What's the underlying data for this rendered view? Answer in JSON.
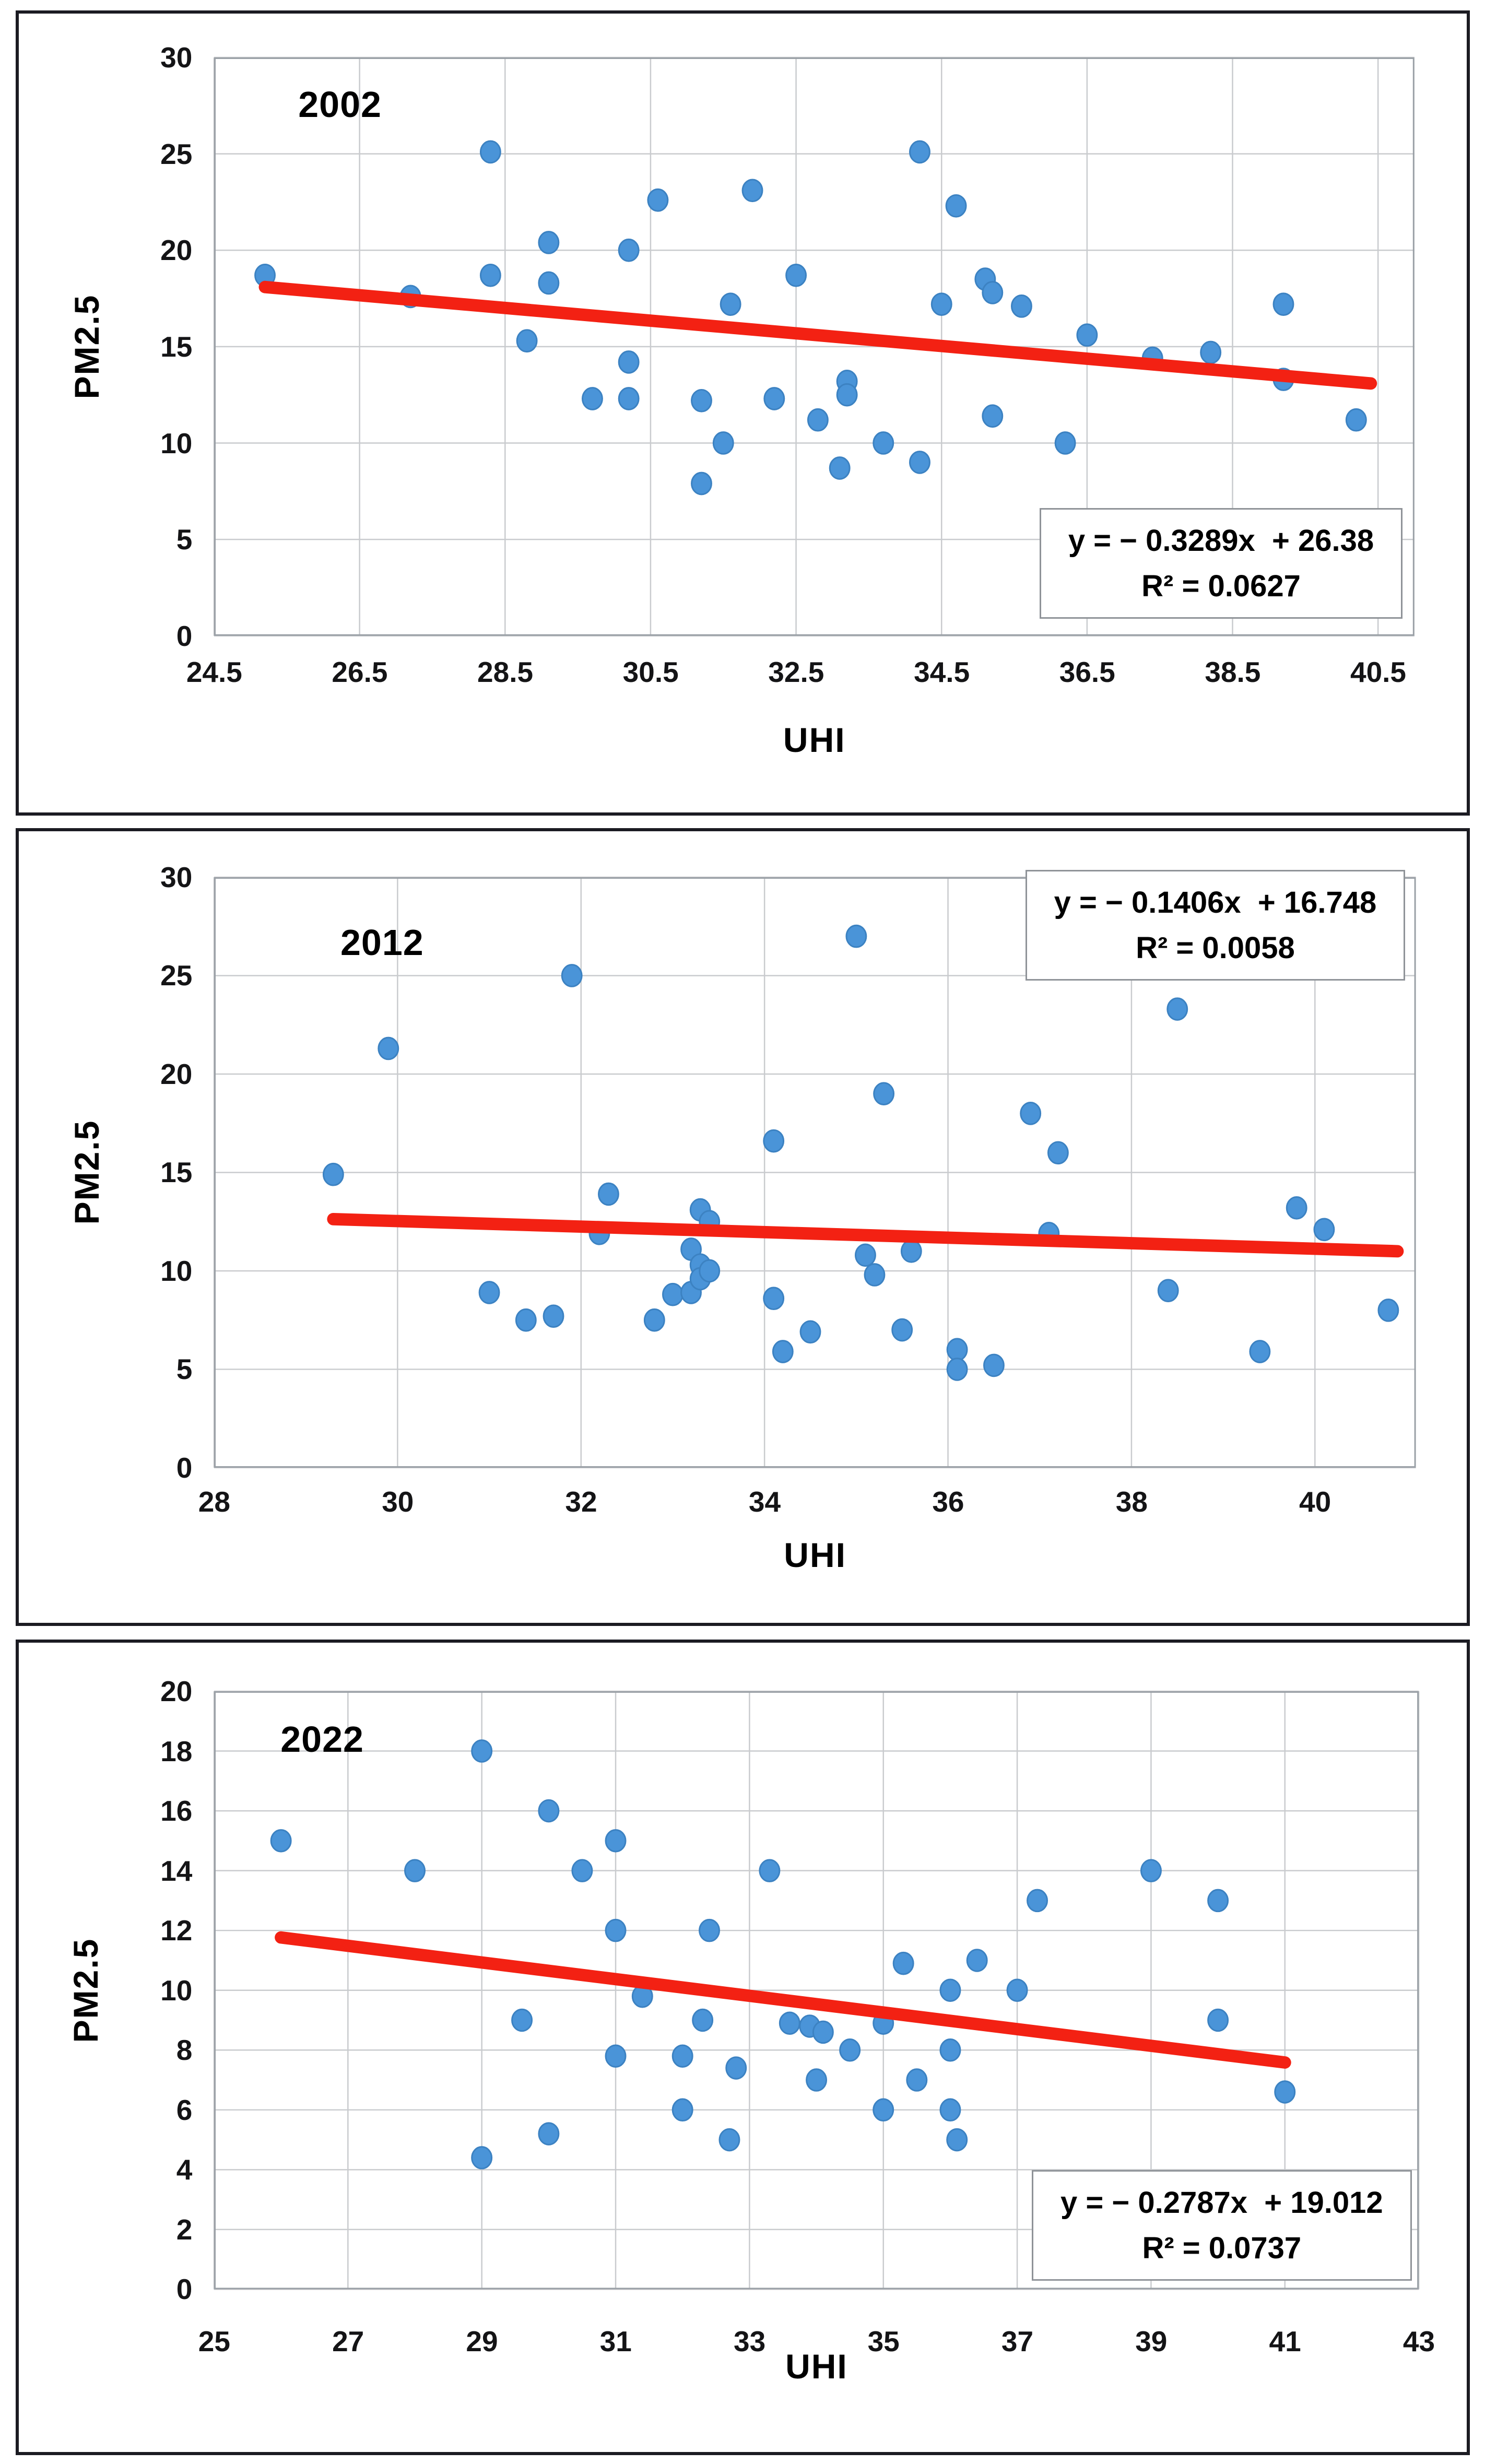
{
  "colors": {
    "dot_fill": "#4a94d8",
    "dot_edge": "#3c82c2",
    "trend_red": "#f32113",
    "gridline": "#c9cbce",
    "plot_border": "#9aa0a6",
    "tick_text": "#141416",
    "panel_border": "#1b1b22",
    "equation_border": "#8f9398"
  },
  "chart_data": [
    {
      "type": "scatter",
      "year_label": "2002",
      "xlabel": "UHI",
      "ylabel": "PM2.5",
      "xlim": [
        24.5,
        41.0
      ],
      "ylim": [
        0,
        30
      ],
      "xticks": [
        "24.5",
        "26.5",
        "28.5",
        "30.5",
        "32.5",
        "34.5",
        "36.5",
        "38.5",
        "40.5"
      ],
      "yticks": [
        "0",
        "5",
        "10",
        "15",
        "20",
        "25",
        "30"
      ],
      "grid": true,
      "legend_position": "none",
      "equation": "y = − 0.3289x  + 26.38",
      "r_squared": "R² = 0.0627",
      "trendline": {
        "slope": -0.3289,
        "intercept": 26.38,
        "x_start": 25.2,
        "x_end": 40.4
      },
      "points": [
        [
          25.2,
          18.7
        ],
        [
          27.2,
          17.6
        ],
        [
          28.3,
          25.1
        ],
        [
          28.3,
          18.7
        ],
        [
          28.8,
          15.3
        ],
        [
          29.1,
          20.4
        ],
        [
          29.1,
          18.3
        ],
        [
          29.7,
          12.3
        ],
        [
          30.2,
          20.0
        ],
        [
          30.2,
          14.2
        ],
        [
          30.2,
          12.3
        ],
        [
          30.6,
          22.6
        ],
        [
          31.2,
          12.2
        ],
        [
          31.2,
          7.9
        ],
        [
          31.5,
          10.0
        ],
        [
          31.6,
          17.2
        ],
        [
          31.9,
          23.1
        ],
        [
          32.2,
          12.3
        ],
        [
          32.5,
          18.7
        ],
        [
          32.8,
          11.2
        ],
        [
          33.1,
          8.7
        ],
        [
          33.2,
          13.2
        ],
        [
          33.2,
          12.5
        ],
        [
          33.7,
          10.0
        ],
        [
          34.2,
          25.1
        ],
        [
          34.2,
          9.0
        ],
        [
          34.5,
          17.2
        ],
        [
          34.7,
          22.3
        ],
        [
          35.1,
          18.5
        ],
        [
          35.2,
          17.8
        ],
        [
          35.2,
          11.4
        ],
        [
          35.6,
          17.1
        ],
        [
          36.2,
          10.0
        ],
        [
          36.5,
          15.6
        ],
        [
          37.4,
          14.4
        ],
        [
          38.2,
          14.7
        ],
        [
          39.2,
          17.2
        ],
        [
          39.2,
          13.3
        ],
        [
          40.2,
          11.2
        ]
      ]
    },
    {
      "type": "scatter",
      "year_label": "2012",
      "xlabel": "UHI",
      "ylabel": "PM2.5",
      "xlim": [
        28.0,
        41.1
      ],
      "ylim": [
        0,
        30
      ],
      "xticks": [
        "28",
        "30",
        "32",
        "34",
        "36",
        "38",
        "40"
      ],
      "yticks": [
        "0",
        "5",
        "10",
        "15",
        "20",
        "25",
        "30"
      ],
      "grid": true,
      "legend_position": "none",
      "equation": "y = − 0.1406x  + 16.748",
      "r_squared": "R² = 0.0058",
      "trendline": {
        "slope": -0.1406,
        "intercept": 16.748,
        "x_start": 29.3,
        "x_end": 40.9
      },
      "points": [
        [
          29.3,
          14.9
        ],
        [
          29.9,
          21.3
        ],
        [
          31.0,
          8.9
        ],
        [
          31.4,
          7.5
        ],
        [
          31.7,
          7.7
        ],
        [
          31.9,
          25.0
        ],
        [
          32.2,
          11.9
        ],
        [
          32.3,
          13.9
        ],
        [
          32.8,
          7.5
        ],
        [
          33.0,
          8.8
        ],
        [
          33.2,
          11.1
        ],
        [
          33.2,
          8.9
        ],
        [
          33.3,
          13.1
        ],
        [
          33.3,
          10.3
        ],
        [
          33.3,
          9.6
        ],
        [
          33.4,
          12.5
        ],
        [
          33.4,
          10.0
        ],
        [
          34.1,
          16.6
        ],
        [
          34.1,
          8.6
        ],
        [
          34.2,
          5.9
        ],
        [
          34.5,
          6.9
        ],
        [
          35.0,
          27.0
        ],
        [
          35.1,
          10.8
        ],
        [
          35.2,
          9.8
        ],
        [
          35.3,
          19.0
        ],
        [
          35.5,
          7.0
        ],
        [
          35.6,
          11.0
        ],
        [
          36.1,
          6.0
        ],
        [
          36.1,
          5.0
        ],
        [
          36.5,
          5.2
        ],
        [
          36.9,
          18.0
        ],
        [
          37.1,
          11.9
        ],
        [
          37.2,
          16.0
        ],
        [
          38.4,
          9.0
        ],
        [
          38.5,
          23.3
        ],
        [
          39.4,
          5.9
        ],
        [
          39.8,
          13.2
        ],
        [
          40.1,
          12.1
        ],
        [
          40.8,
          8.0
        ]
      ]
    },
    {
      "type": "scatter",
      "year_label": "2022",
      "xlabel": "UHI",
      "ylabel": "PM2.5",
      "xlim": [
        25.0,
        43.0
      ],
      "ylim": [
        0,
        20
      ],
      "xticks": [
        "25",
        "27",
        "29",
        "31",
        "33",
        "35",
        "37",
        "39",
        "41",
        "43"
      ],
      "yticks": [
        "0",
        "2",
        "4",
        "6",
        "8",
        "10",
        "12",
        "14",
        "16",
        "18",
        "20"
      ],
      "grid": true,
      "legend_position": "none",
      "equation": "y = − 0.2787x  + 19.012",
      "r_squared": "R² = 0.0737",
      "trendline": {
        "slope": -0.2787,
        "intercept": 19.012,
        "x_start": 26.0,
        "x_end": 41.0
      },
      "points": [
        [
          26.0,
          15.0
        ],
        [
          28.0,
          14.0
        ],
        [
          29.0,
          18.0
        ],
        [
          29.0,
          4.4
        ],
        [
          29.6,
          9.0
        ],
        [
          30.0,
          16.0
        ],
        [
          30.0,
          5.2
        ],
        [
          30.5,
          14.0
        ],
        [
          31.0,
          15.0
        ],
        [
          31.0,
          12.0
        ],
        [
          31.0,
          7.8
        ],
        [
          31.4,
          9.8
        ],
        [
          32.0,
          7.8
        ],
        [
          32.0,
          6.0
        ],
        [
          32.3,
          9.0
        ],
        [
          32.4,
          12.0
        ],
        [
          32.7,
          5.0
        ],
        [
          32.8,
          7.4
        ],
        [
          33.3,
          14.0
        ],
        [
          33.6,
          8.9
        ],
        [
          33.9,
          8.8
        ],
        [
          34.0,
          7.0
        ],
        [
          34.1,
          8.6
        ],
        [
          34.5,
          8.0
        ],
        [
          35.0,
          8.9
        ],
        [
          35.0,
          6.0
        ],
        [
          35.3,
          10.9
        ],
        [
          35.5,
          7.0
        ],
        [
          36.0,
          10.0
        ],
        [
          36.0,
          8.0
        ],
        [
          36.0,
          6.0
        ],
        [
          36.1,
          5.0
        ],
        [
          36.4,
          11.0
        ],
        [
          37.0,
          10.0
        ],
        [
          37.3,
          13.0
        ],
        [
          39.0,
          14.0
        ],
        [
          40.0,
          13.0
        ],
        [
          40.0,
          9.0
        ],
        [
          41.0,
          6.6
        ]
      ]
    }
  ]
}
